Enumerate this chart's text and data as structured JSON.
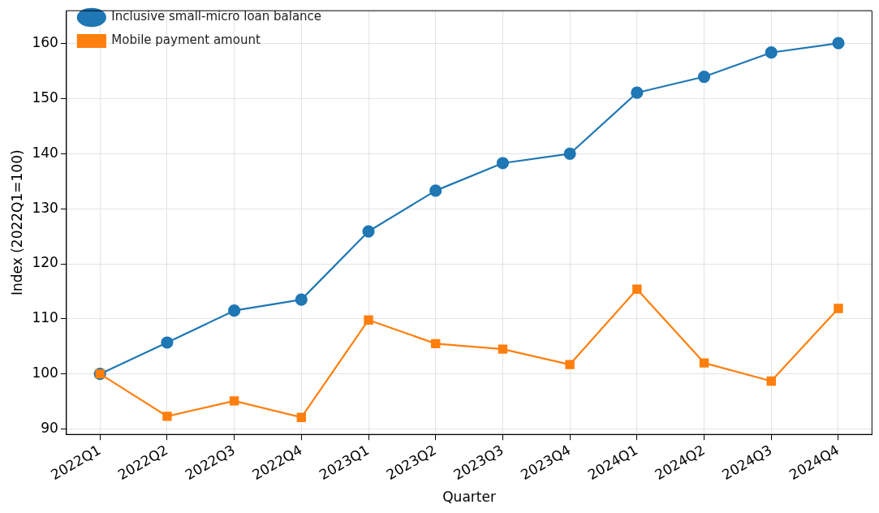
{
  "chart_data": {
    "type": "line",
    "xlabel": "Quarter",
    "ylabel": "Index (2022Q1=100)",
    "categories": [
      "2022Q1",
      "2022Q2",
      "2022Q3",
      "2022Q4",
      "2023Q1",
      "2023Q2",
      "2023Q3",
      "2023Q4",
      "2024Q1",
      "2024Q2",
      "2024Q3",
      "2024Q4"
    ],
    "series": [
      {
        "name": "Inclusive small-micro loan balance",
        "color": "#1f77b4",
        "marker": "circle",
        "values": [
          100,
          105.7,
          111.5,
          113.5,
          125.9,
          133.3,
          138.3,
          140.0,
          151.1,
          154.0,
          158.4,
          160.1
        ]
      },
      {
        "name": "Mobile payment amount",
        "color": "#ff7f0e",
        "marker": "square",
        "values": [
          100,
          92.3,
          95.1,
          92.1,
          109.8,
          105.5,
          104.5,
          101.7,
          115.4,
          102.0,
          98.7,
          111.9
        ]
      }
    ],
    "ylim": [
      89,
      166
    ],
    "yticks": [
      90,
      100,
      110,
      120,
      130,
      140,
      150,
      160
    ],
    "grid": true,
    "legend": "top left",
    "line_style": "solid"
  }
}
